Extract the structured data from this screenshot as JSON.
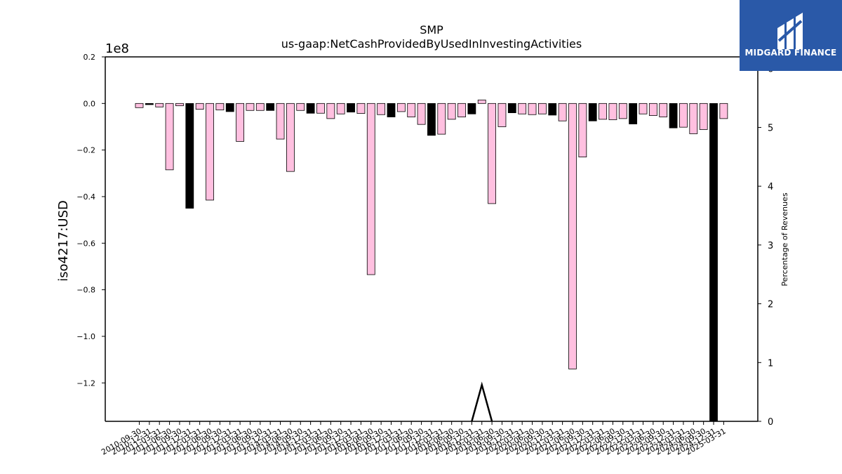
{
  "chart_data": {
    "type": "bar",
    "title": "SMP",
    "subtitle": "us-gaap:NetCashProvidedByUsedInInvestingActivities",
    "ylabel": "iso4217:USD",
    "y_multiplier_label": "1e8",
    "y2label": "Percentage of Revenues",
    "ylim": [
      -1.365,
      0.2
    ],
    "y_ticks": [
      -1.2,
      -1.0,
      -0.8,
      -0.6,
      -0.4,
      -0.2,
      0.0,
      0.2
    ],
    "y_tick_labels": [
      "−1.2",
      "−1.0",
      "−0.8",
      "−0.6",
      "−0.4",
      "−0.2",
      "0.0",
      "0.2"
    ],
    "y2lim": [
      0,
      6.2
    ],
    "y2_ticks": [
      0,
      1,
      2,
      3,
      4,
      5,
      6
    ],
    "y2_tick_labels": [
      "0",
      "1",
      "2",
      "3",
      "4",
      "5",
      "6"
    ],
    "colors": {
      "pink": "#ffc0e0",
      "black": "#000000"
    },
    "categories": [
      "2010-09-30",
      "2010-12-31",
      "2011-03-31",
      "2011-06-30",
      "2011-09-30",
      "2011-12-31",
      "2012-03-31",
      "2012-06-30",
      "2012-09-30",
      "2012-12-31",
      "2013-03-31",
      "2013-06-30",
      "2013-09-30",
      "2013-12-31",
      "2014-03-31",
      "2014-06-30",
      "2014-09-30",
      "2014-12-31",
      "2015-03-31",
      "2015-06-30",
      "2015-09-30",
      "2015-12-31",
      "2016-03-31",
      "2016-06-30",
      "2016-09-30",
      "2016-12-31",
      "2017-03-31",
      "2017-06-30",
      "2017-09-30",
      "2017-12-31",
      "2018-03-31",
      "2018-06-30",
      "2018-09-30",
      "2018-12-31",
      "2019-03-31",
      "2019-06-30",
      "2019-09-30",
      "2019-12-31",
      "2020-03-31",
      "2020-06-30",
      "2020-09-30",
      "2020-12-31",
      "2021-03-31",
      "2021-06-30",
      "2021-09-30",
      "2021-12-31",
      "2022-03-31",
      "2022-06-30",
      "2022-09-30",
      "2022-12-31",
      "2023-03-31",
      "2023-06-30",
      "2023-09-30",
      "2023-12-31",
      "2024-03-31",
      "2024-06-30",
      "2024-09-30",
      "2024-12-31",
      "2025-03-31"
    ],
    "values": [
      -0.018,
      -0.005,
      -0.015,
      -0.285,
      -0.01,
      -0.45,
      -0.025,
      -0.415,
      -0.028,
      -0.035,
      -0.163,
      -0.03,
      -0.03,
      -0.03,
      -0.153,
      -0.292,
      -0.03,
      -0.042,
      -0.042,
      -0.065,
      -0.045,
      -0.037,
      -0.043,
      -0.735,
      -0.048,
      -0.058,
      -0.035,
      -0.058,
      -0.09,
      -0.137,
      -0.132,
      -0.068,
      -0.058,
      -0.045,
      0.015,
      -0.43,
      -0.1,
      -0.04,
      -0.045,
      -0.048,
      -0.045,
      -0.05,
      -0.075,
      -1.14,
      -0.23,
      -0.075,
      -0.068,
      -0.07,
      -0.065,
      -0.088,
      -0.045,
      -0.052,
      -0.058,
      -0.105,
      -0.102,
      -0.13,
      -0.112,
      -1.365,
      -0.065
    ],
    "bar_colors": [
      "pink",
      "black",
      "pink",
      "pink",
      "pink",
      "black",
      "pink",
      "pink",
      "pink",
      "black",
      "pink",
      "pink",
      "pink",
      "black",
      "pink",
      "pink",
      "pink",
      "black",
      "pink",
      "pink",
      "pink",
      "black",
      "pink",
      "pink",
      "pink",
      "black",
      "pink",
      "pink",
      "pink",
      "black",
      "pink",
      "pink",
      "pink",
      "black",
      "pink",
      "pink",
      "pink",
      "black",
      "pink",
      "pink",
      "pink",
      "black",
      "pink",
      "pink",
      "pink",
      "black",
      "pink",
      "pink",
      "pink",
      "black",
      "pink",
      "pink",
      "pink",
      "black",
      "pink",
      "pink",
      "pink",
      "black",
      "pink"
    ],
    "percentage_series": {
      "index": 34,
      "value": 0.62
    }
  },
  "logo": {
    "text": "MIDGARD FINANCE",
    "color": "#2a59a8"
  }
}
